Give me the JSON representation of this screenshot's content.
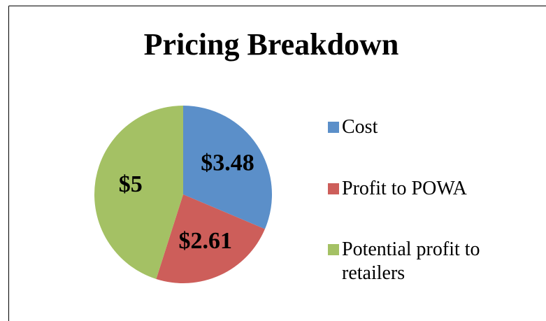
{
  "chart_data": {
    "type": "pie",
    "title": "Pricing Breakdown",
    "categories": [
      "Cost",
      "Profit to POWA",
      "Potential profit to retailers"
    ],
    "values": [
      3.48,
      2.61,
      5
    ],
    "value_labels": [
      "$3.48",
      "$2.61",
      "$5"
    ],
    "colors": [
      "#5b8fc9",
      "#cd5e5a",
      "#a4c164"
    ],
    "legend": "right"
  }
}
